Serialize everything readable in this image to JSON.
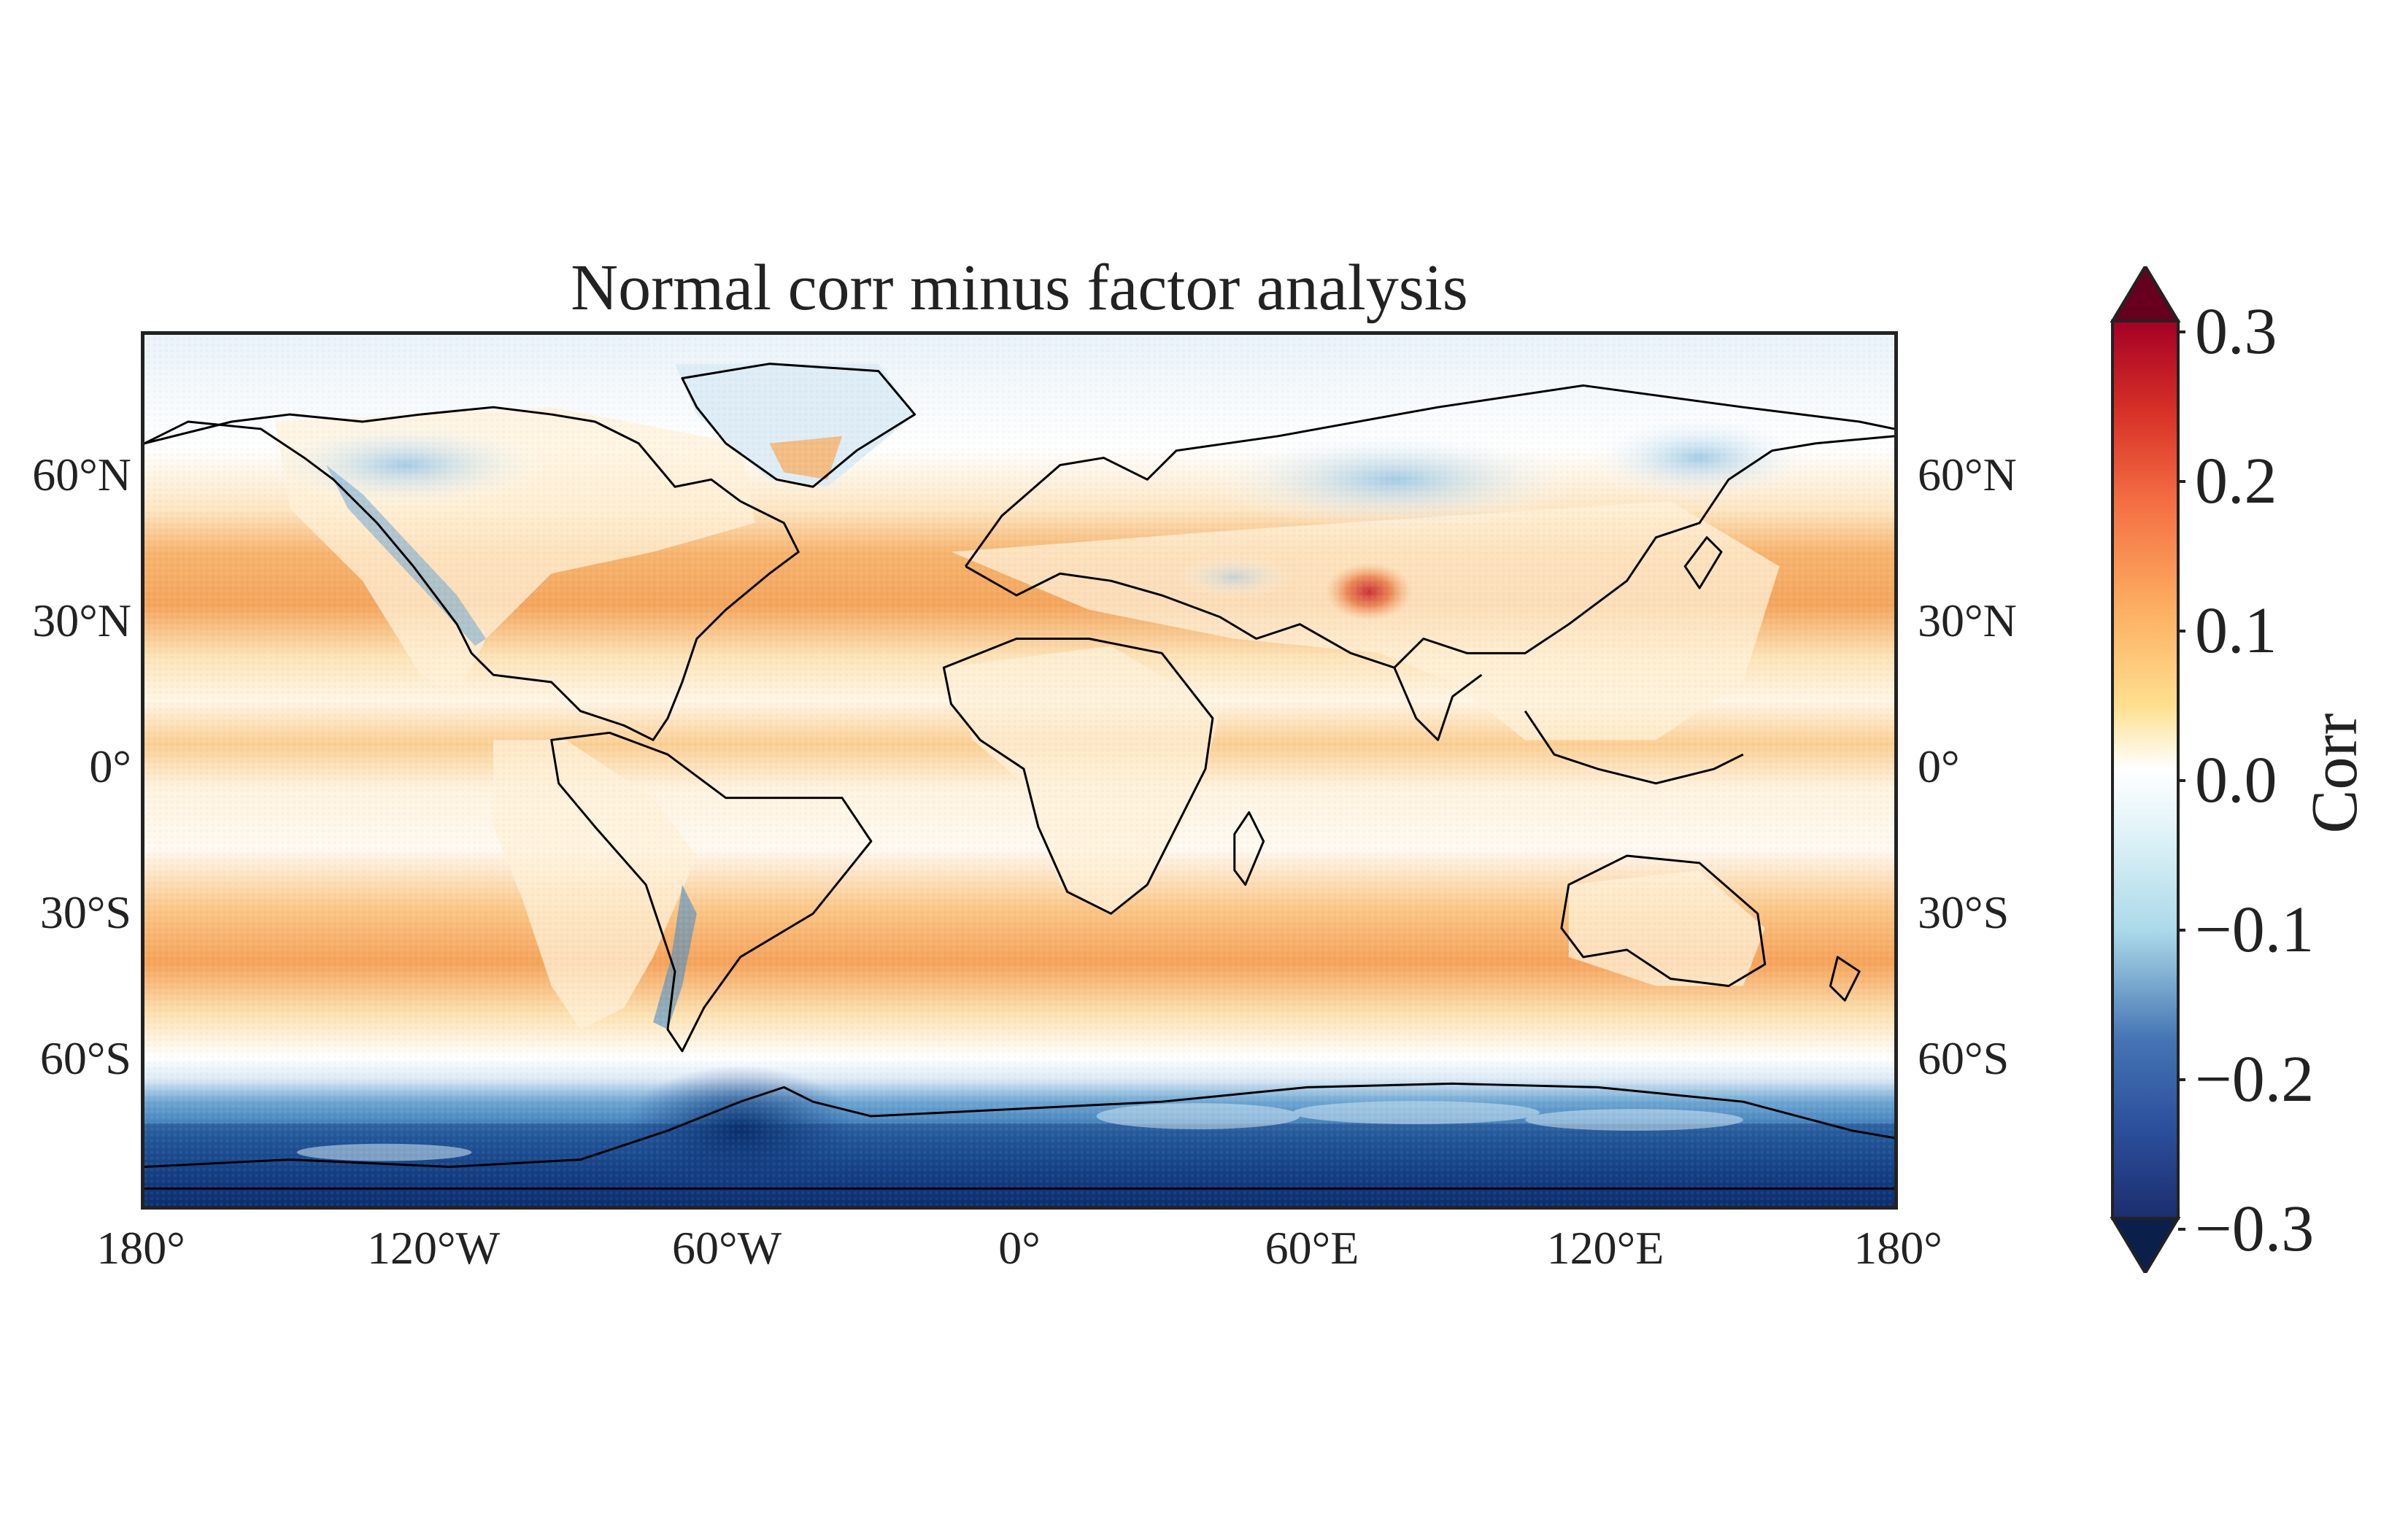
{
  "figure": {
    "title": "Normal corr minus factor analysis",
    "lat_ticks": [
      "60°N",
      "30°N",
      "0°",
      "30°S",
      "60°S"
    ],
    "lat_ticks_right": [
      "60°N",
      "30°N",
      "0°",
      "30°S",
      "60°S"
    ],
    "lon_ticks": [
      "180°",
      "120°W",
      "60°W",
      "0°",
      "60°E",
      "120°E",
      "180°"
    ],
    "colorbar": {
      "label": "Corr",
      "ticks": [
        "0.3",
        "0.2",
        "0.1",
        "0.0",
        "−0.1",
        "−0.2",
        "−0.3"
      ],
      "range": [
        -0.3,
        0.3
      ],
      "extend": "both",
      "cmap": "RdYlBu_r"
    },
    "colors": {
      "positive_strong": "#b2182b",
      "positive_mid": "#f4a05a",
      "positive_weak": "#fde4b8",
      "neutral": "#ffffff",
      "negative_weak": "#cfe6f3",
      "negative_mid": "#4a8ec4",
      "negative_strong": "#08306b",
      "coastline": "#000000"
    }
  }
}
